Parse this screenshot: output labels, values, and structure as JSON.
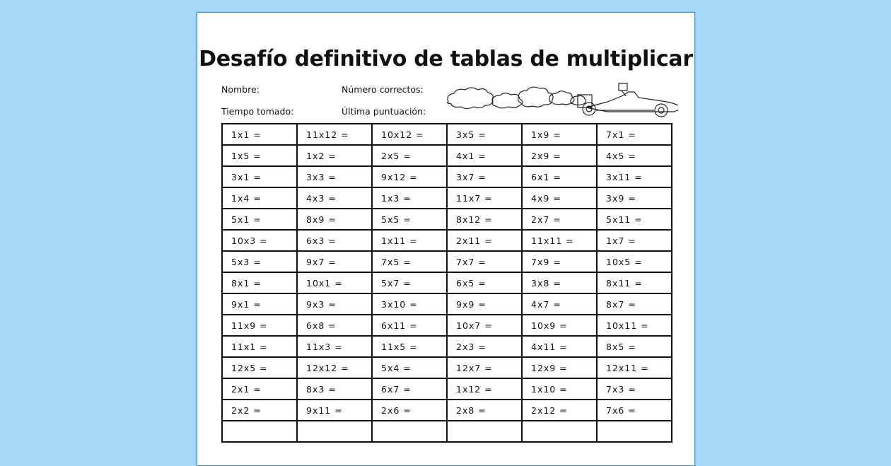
{
  "title": "Desafío definitivo de tablas de multiplicar",
  "fields": {
    "name": "Nombre:",
    "correct": "Número correctos:",
    "time": "Tiempo tomado:",
    "last_score": "Última puntuación:"
  },
  "rows": [
    [
      "1x1 =",
      "11x12 =",
      "10x12 =",
      "3x5 =",
      "1x9 =",
      "7x1 ="
    ],
    [
      "1x5 =",
      "1x2 =",
      "2x5 =",
      "4x1 =",
      "2x9 =",
      "4x5 ="
    ],
    [
      "3x1 =",
      "3x3 =",
      "9x12 =",
      "3x7 =",
      "6x1 =",
      "3x11 ="
    ],
    [
      "1x4 =",
      "4x3 =",
      "1x3 =",
      "11x7 =",
      "4x9 =",
      "3x9 ="
    ],
    [
      "5x1 =",
      "8x9 =",
      "5x5 =",
      "8x12 =",
      "2x7 =",
      "5x11 ="
    ],
    [
      "10x3 =",
      "6x3 =",
      "1x11 =",
      "2x11 =",
      "11x11 =",
      "1x7 ="
    ],
    [
      "5x3 =",
      "9x7 =",
      "7x5 =",
      "7x7 =",
      "7x9 =",
      "10x5 ="
    ],
    [
      "8x1 =",
      "10x1 =",
      "5x7 =",
      "6x5 =",
      "3x8 =",
      "8x11 ="
    ],
    [
      "9x1 =",
      "9x3 =",
      "3x10 =",
      "9x9 =",
      "4x7 =",
      "8x7 ="
    ],
    [
      "11x9 =",
      "6x8 =",
      "6x11 =",
      "10x7 =",
      "10x9 =",
      "10x11 ="
    ],
    [
      "11x1 =",
      "11x3 =",
      "11x5 =",
      "2x3 =",
      "4x11 =",
      "8x5 ="
    ],
    [
      "12x5 =",
      "12x12 =",
      "5x4 =",
      "12x7 =",
      "12x9 =",
      "12x11 ="
    ],
    [
      "2x1 =",
      "8x3 =",
      "6x7 =",
      "1x12 =",
      "1x10 =",
      "7x3 ="
    ],
    [
      "2x2 =",
      "9x11 =",
      "2x6 =",
      "2x8 =",
      "2x12 =",
      "7x6 ="
    ],
    [
      "",
      "",
      "",
      "",
      "",
      ""
    ]
  ],
  "colors": {
    "background": "#a6d8fb",
    "page": "#ffffff",
    "ink": "#111111"
  }
}
